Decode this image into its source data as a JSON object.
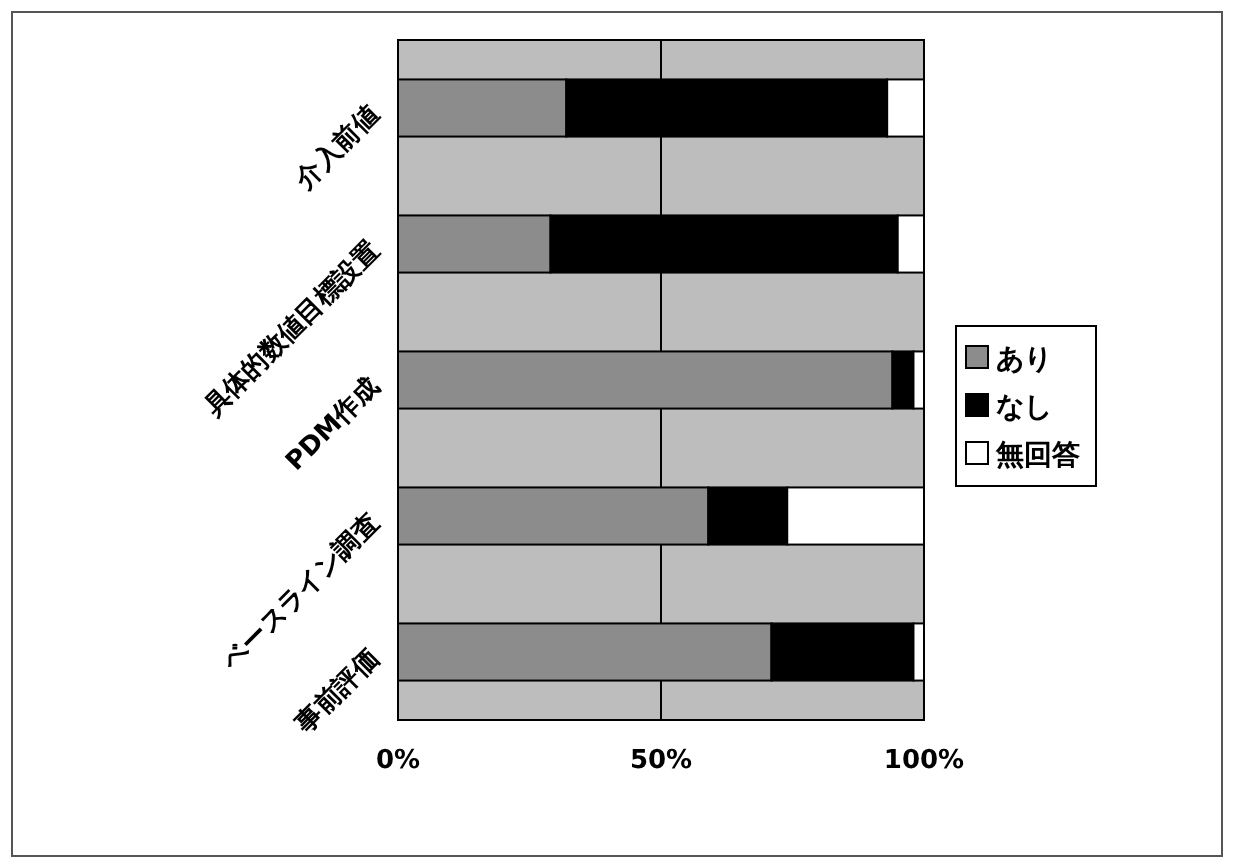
{
  "chart_data": {
    "type": "bar",
    "orientation": "horizontal",
    "stacked": true,
    "categories": [
      "介入前値",
      "具体的数値目標設置",
      "PDM作成",
      "ベースライン調査",
      "事前評価"
    ],
    "series": [
      {
        "name": "あり",
        "color": "#8c8c8c",
        "values": [
          32,
          29,
          94,
          59,
          71
        ]
      },
      {
        "name": "なし",
        "color": "#000000",
        "values": [
          61,
          66,
          4,
          15,
          27
        ]
      },
      {
        "name": "無回答",
        "color": "#ffffff",
        "values": [
          7,
          5,
          2,
          26,
          2
        ]
      }
    ],
    "xlim": [
      0,
      100
    ],
    "xticks": [
      {
        "value": 0,
        "label": "0%"
      },
      {
        "value": 50,
        "label": "50%"
      },
      {
        "value": 100,
        "label": "100%"
      }
    ],
    "bands": [
      {
        "axis": "x",
        "from": 0,
        "to": 100,
        "color": "#bdbdbd"
      }
    ],
    "grid": "x",
    "legend": "right"
  }
}
